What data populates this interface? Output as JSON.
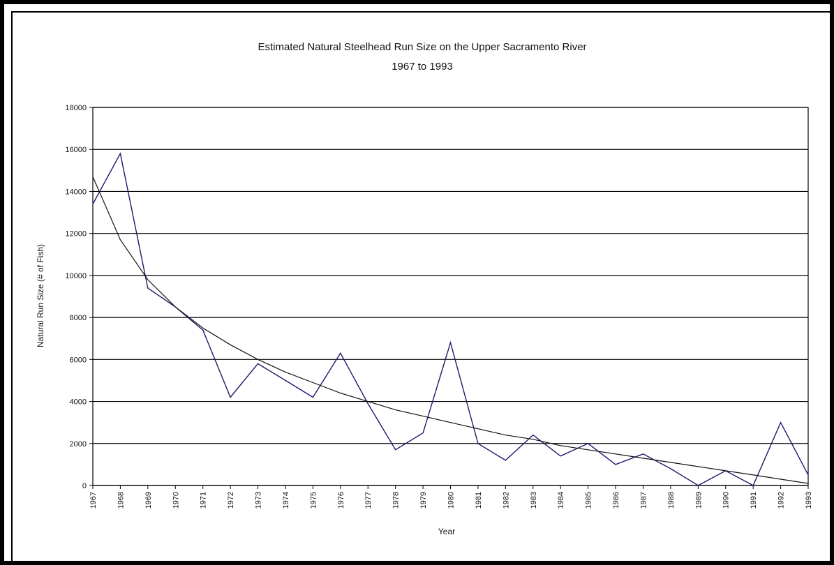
{
  "chart_data": {
    "type": "line",
    "title": "Estimated Natural Steelhead Run Size on the Upper Sacramento River",
    "subtitle": "1967 to 1993",
    "xlabel": "Year",
    "ylabel": "Natural Run Size (# of Fish)",
    "ylim": [
      0,
      18000
    ],
    "y_ticks": [
      "0",
      "2000",
      "4000",
      "6000",
      "8000",
      "10000",
      "12000",
      "14000",
      "16000",
      "18000"
    ],
    "categories": [
      "1967",
      "1968",
      "1969",
      "1970",
      "1971",
      "1972",
      "1973",
      "1974",
      "1975",
      "1976",
      "1977",
      "1978",
      "1979",
      "1980",
      "1981",
      "1982",
      "1983",
      "1984",
      "1985",
      "1986",
      "1987",
      "1988",
      "1989",
      "1990",
      "1991",
      "1992",
      "1993"
    ],
    "grid": "horizontal",
    "series": [
      {
        "color": "#1a1a6e",
        "values": [
          13400,
          15800,
          9400,
          8500,
          7400,
          4200,
          5800,
          5000,
          4200,
          6300,
          3900,
          1700,
          2500,
          6800,
          2000,
          1200,
          2400,
          1400,
          2000,
          1000,
          1500,
          800,
          0,
          700,
          0,
          3000,
          500
        ]
      },
      {
        "color": "#111111",
        "values": [
          14700,
          11700,
          9800,
          8500,
          7500,
          6700,
          6000,
          5400,
          4900,
          4400,
          4000,
          3600,
          3300,
          3000,
          2700,
          2400,
          2200,
          1900,
          1700,
          1500,
          1300,
          1100,
          900,
          700,
          500,
          300,
          100
        ]
      }
    ]
  }
}
